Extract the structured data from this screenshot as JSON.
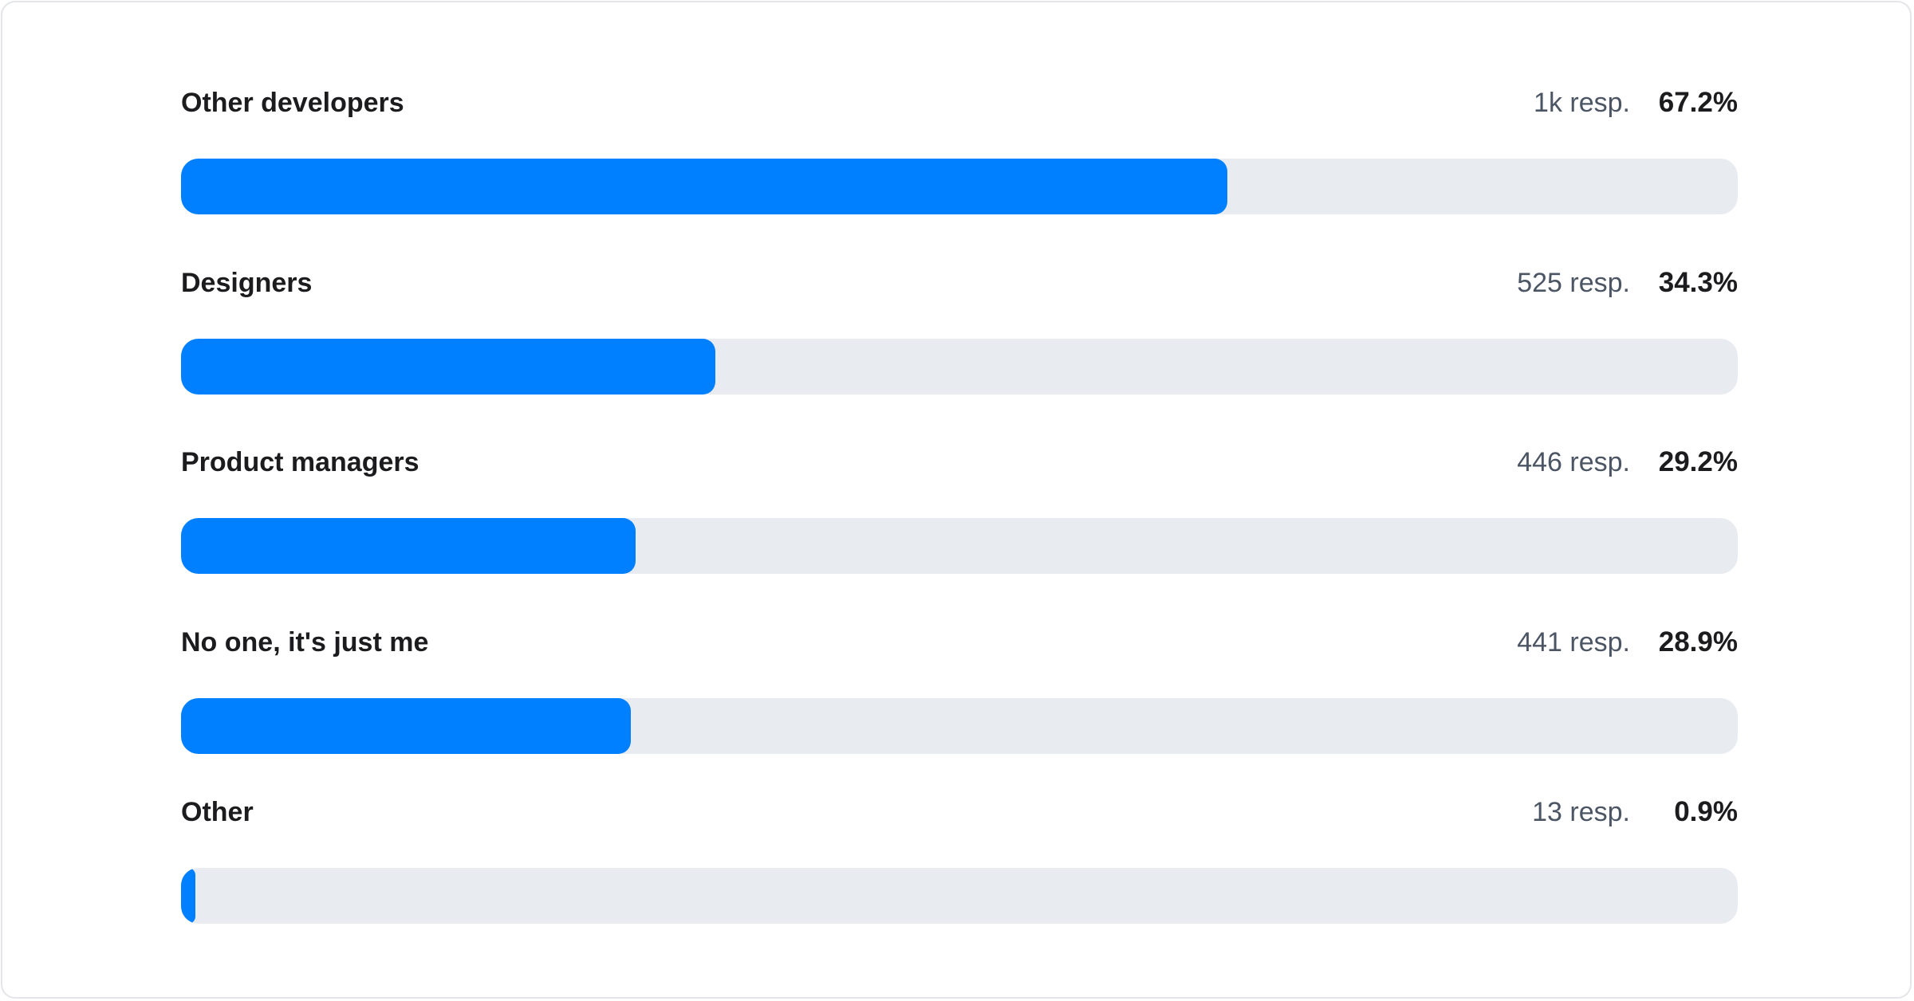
{
  "chart_data": {
    "type": "bar",
    "orientation": "horizontal",
    "categories": [
      "Other developers",
      "Designers",
      "Product managers",
      "No one, it's just me",
      "Other"
    ],
    "responses": [
      "1k resp.",
      "525 resp.",
      "446 resp.",
      "441 resp.",
      "13 resp."
    ],
    "percent_labels": [
      "67.2%",
      "34.3%",
      "29.2%",
      "28.9%",
      "0.9%"
    ],
    "values": [
      67.2,
      34.3,
      29.2,
      28.9,
      0.9
    ],
    "xlim": [
      0,
      100
    ],
    "colors": {
      "fill": "#0080ff",
      "track": "#e8ecf1"
    }
  }
}
